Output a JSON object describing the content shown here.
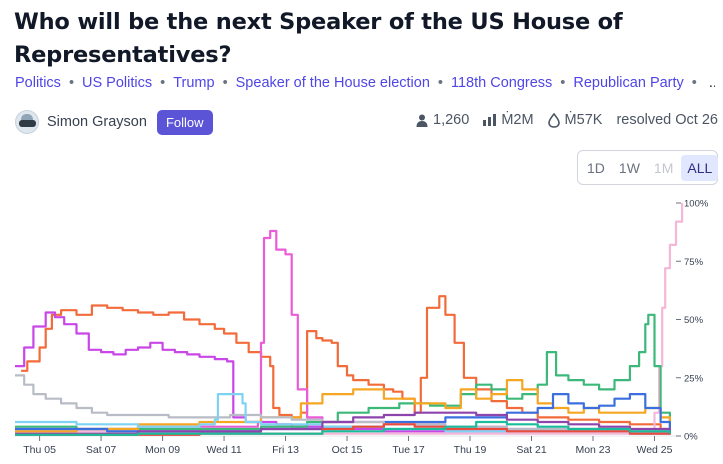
{
  "question": {
    "title": "Who will be the next Speaker of the US House of Representatives?"
  },
  "tags": [
    "Politics",
    "US Politics",
    "Trump",
    "Speaker of the House election",
    "118th Congress",
    "Republican Party"
  ],
  "tags_more": "...",
  "author": {
    "name": "Simon Grayson",
    "follow_label": "Follow"
  },
  "stats": {
    "traders": "1,260",
    "volume": "Ṁ2M",
    "liquidity": "Ṁ57K",
    "resolved": "resolved Oct 26"
  },
  "icons": {
    "traders": "person-icon",
    "volume": "bar-chart-icon",
    "liquidity": "droplet-icon"
  },
  "range_buttons": [
    {
      "label": "1D",
      "state": "normal"
    },
    {
      "label": "1W",
      "state": "normal"
    },
    {
      "label": "1M",
      "state": "disabled"
    },
    {
      "label": "ALL",
      "state": "active"
    }
  ],
  "colors": {
    "accent": "#5b54d6",
    "tag": "#4f46e5"
  },
  "chart_data": {
    "type": "line",
    "x_labels": [
      "Thu 05",
      "Sat 07",
      "Mon 09",
      "Wed 11",
      "Fri 13",
      "Oct 15",
      "Tue 17",
      "Thu 19",
      "Sat 21",
      "Mon 23",
      "Wed 25"
    ],
    "y_tick_labels": [
      "100%",
      "75%",
      "50%",
      "25%",
      "0%"
    ],
    "ylim": [
      0,
      100
    ],
    "xlim": [
      0,
      21.5
    ],
    "y_axis_position": "right",
    "series": [
      {
        "color": "#f26b3a",
        "points": [
          [
            0.2,
            28
          ],
          [
            0.4,
            32
          ],
          [
            0.8,
            38
          ],
          [
            1.0,
            46
          ],
          [
            1.2,
            52
          ],
          [
            1.5,
            54
          ],
          [
            2.0,
            52
          ],
          [
            2.5,
            56
          ],
          [
            3.0,
            55
          ],
          [
            3.5,
            54
          ],
          [
            4.0,
            53
          ],
          [
            4.5,
            52
          ],
          [
            5.0,
            53
          ],
          [
            5.5,
            50
          ],
          [
            6.0,
            48
          ],
          [
            6.5,
            46
          ],
          [
            6.8,
            44
          ],
          [
            7.0,
            44
          ],
          [
            7.2,
            40
          ],
          [
            7.6,
            36
          ],
          [
            8.0,
            34
          ],
          [
            8.3,
            30
          ],
          [
            8.4,
            12
          ],
          [
            8.6,
            9
          ],
          [
            9.0,
            8
          ],
          [
            9.3,
            10
          ],
          [
            9.5,
            45
          ],
          [
            9.8,
            42
          ],
          [
            10.0,
            41
          ],
          [
            10.3,
            40
          ],
          [
            10.5,
            30
          ],
          [
            10.8,
            26
          ],
          [
            11.0,
            24
          ],
          [
            11.5,
            22
          ],
          [
            12.0,
            20
          ],
          [
            12.3,
            19
          ],
          [
            12.6,
            16
          ],
          [
            13.0,
            10
          ],
          [
            13.2,
            25
          ],
          [
            13.4,
            55
          ],
          [
            13.8,
            60
          ],
          [
            14.0,
            52
          ],
          [
            14.3,
            40
          ],
          [
            14.6,
            25
          ],
          [
            15.0,
            20
          ],
          [
            15.5,
            15
          ],
          [
            16.0,
            12
          ],
          [
            16.5,
            10
          ],
          [
            17.0,
            8
          ],
          [
            18.0,
            7
          ],
          [
            19.0,
            6
          ],
          [
            20.0,
            5
          ],
          [
            21.0,
            3
          ],
          [
            21.3,
            2
          ]
        ]
      },
      {
        "color": "#c946e8",
        "points": [
          [
            0.0,
            30
          ],
          [
            0.3,
            38
          ],
          [
            0.6,
            47
          ],
          [
            1.0,
            53
          ],
          [
            1.3,
            51
          ],
          [
            1.6,
            48
          ],
          [
            2.0,
            44
          ],
          [
            2.4,
            37
          ],
          [
            2.8,
            36
          ],
          [
            3.2,
            35
          ],
          [
            3.6,
            37
          ],
          [
            4.0,
            38
          ],
          [
            4.4,
            40
          ],
          [
            4.8,
            37
          ],
          [
            5.2,
            36
          ],
          [
            5.6,
            35
          ],
          [
            6.0,
            34
          ],
          [
            6.5,
            33
          ],
          [
            6.9,
            32
          ],
          [
            7.1,
            8
          ],
          [
            7.5,
            6
          ],
          [
            8.0,
            6
          ],
          [
            8.5,
            5
          ],
          [
            9.0,
            4
          ],
          [
            10.0,
            3
          ],
          [
            11.0,
            3
          ],
          [
            12.0,
            2
          ],
          [
            14.0,
            2
          ],
          [
            16.0,
            2
          ],
          [
            18.0,
            2
          ],
          [
            20.0,
            1
          ],
          [
            21.3,
            1
          ]
        ]
      },
      {
        "color": "#ea5cd8",
        "points": [
          [
            0.0,
            3
          ],
          [
            2.0,
            3
          ],
          [
            4.0,
            4
          ],
          [
            6.0,
            4
          ],
          [
            7.9,
            6
          ],
          [
            8.0,
            40
          ],
          [
            8.1,
            85
          ],
          [
            8.3,
            88
          ],
          [
            8.5,
            80
          ],
          [
            8.8,
            78
          ],
          [
            9.0,
            52
          ],
          [
            9.2,
            20
          ],
          [
            9.5,
            8
          ],
          [
            10.0,
            6
          ],
          [
            12.0,
            5
          ],
          [
            14.0,
            4
          ],
          [
            16.0,
            3
          ],
          [
            18.0,
            3
          ],
          [
            20.0,
            2
          ],
          [
            21.3,
            1
          ]
        ]
      },
      {
        "color": "#f4b7d8",
        "points": [
          [
            0.0,
            2
          ],
          [
            4.0,
            1
          ],
          [
            8.0,
            1
          ],
          [
            12.0,
            1
          ],
          [
            16.0,
            1
          ],
          [
            19.0,
            1
          ],
          [
            20.5,
            2
          ],
          [
            20.8,
            10
          ],
          [
            20.95,
            30
          ],
          [
            21.05,
            55
          ],
          [
            21.15,
            72
          ],
          [
            21.3,
            82
          ],
          [
            21.5,
            92
          ],
          [
            21.7,
            100
          ]
        ]
      },
      {
        "color": "#3cb87a",
        "points": [
          [
            0.0,
            4
          ],
          [
            2.0,
            3
          ],
          [
            4.0,
            3
          ],
          [
            6.0,
            3
          ],
          [
            8.0,
            4
          ],
          [
            9.5,
            6
          ],
          [
            10.5,
            10
          ],
          [
            11.5,
            12
          ],
          [
            12.5,
            14
          ],
          [
            13.5,
            13
          ],
          [
            14.5,
            18
          ],
          [
            15.0,
            22
          ],
          [
            15.5,
            20
          ],
          [
            16.0,
            16
          ],
          [
            16.5,
            18
          ],
          [
            17.0,
            22
          ],
          [
            17.3,
            36
          ],
          [
            17.6,
            26
          ],
          [
            18.0,
            24
          ],
          [
            18.5,
            22
          ],
          [
            19.0,
            20
          ],
          [
            19.5,
            24
          ],
          [
            20.0,
            30
          ],
          [
            20.3,
            36
          ],
          [
            20.5,
            48
          ],
          [
            20.6,
            52
          ],
          [
            20.8,
            30
          ],
          [
            21.0,
            10
          ],
          [
            21.3,
            4
          ]
        ]
      },
      {
        "color": "#f5a623",
        "points": [
          [
            0.0,
            2
          ],
          [
            2.0,
            3
          ],
          [
            4.0,
            5
          ],
          [
            6.0,
            6
          ],
          [
            8.0,
            8
          ],
          [
            9.3,
            14
          ],
          [
            10.0,
            18
          ],
          [
            11.0,
            20
          ],
          [
            12.0,
            16
          ],
          [
            13.0,
            14
          ],
          [
            14.0,
            12
          ],
          [
            14.5,
            20
          ],
          [
            15.0,
            16
          ],
          [
            15.5,
            18
          ],
          [
            16.0,
            24
          ],
          [
            16.5,
            20
          ],
          [
            17.0,
            14
          ],
          [
            17.5,
            12
          ],
          [
            18.0,
            10
          ],
          [
            18.5,
            12
          ],
          [
            19.0,
            10
          ],
          [
            20.0,
            10
          ],
          [
            20.5,
            12
          ],
          [
            21.0,
            8
          ],
          [
            21.3,
            3
          ]
        ]
      },
      {
        "color": "#3b6fe0",
        "points": [
          [
            0.0,
            3
          ],
          [
            3.0,
            2
          ],
          [
            6.0,
            2
          ],
          [
            8.0,
            3
          ],
          [
            10.0,
            4
          ],
          [
            12.0,
            6
          ],
          [
            14.0,
            8
          ],
          [
            16.0,
            10
          ],
          [
            17.0,
            12
          ],
          [
            17.5,
            18
          ],
          [
            18.0,
            14
          ],
          [
            18.5,
            12
          ],
          [
            19.0,
            13
          ],
          [
            19.5,
            16
          ],
          [
            20.0,
            18
          ],
          [
            20.5,
            12
          ],
          [
            21.0,
            6
          ],
          [
            21.3,
            3
          ]
        ]
      },
      {
        "color": "#b8bcc6",
        "points": [
          [
            0.0,
            26
          ],
          [
            0.3,
            22
          ],
          [
            0.6,
            18
          ],
          [
            1.0,
            16
          ],
          [
            1.5,
            14
          ],
          [
            2.0,
            12
          ],
          [
            2.5,
            10
          ],
          [
            3.0,
            9
          ],
          [
            4.0,
            9
          ],
          [
            5.0,
            8
          ],
          [
            6.0,
            8
          ],
          [
            7.0,
            9
          ],
          [
            8.0,
            8
          ],
          [
            9.0,
            7
          ],
          [
            10.0,
            6
          ],
          [
            12.0,
            5
          ],
          [
            14.0,
            4
          ],
          [
            16.0,
            3
          ],
          [
            18.0,
            3
          ],
          [
            20.0,
            2
          ],
          [
            21.3,
            1
          ]
        ]
      },
      {
        "color": "#7ed3f2",
        "points": [
          [
            0.0,
            6
          ],
          [
            2.0,
            5
          ],
          [
            4.0,
            4
          ],
          [
            6.0,
            5
          ],
          [
            6.5,
            7
          ],
          [
            6.6,
            18
          ],
          [
            7.0,
            18
          ],
          [
            7.4,
            14
          ],
          [
            7.5,
            6
          ],
          [
            8.0,
            5
          ],
          [
            10.0,
            4
          ],
          [
            12.0,
            3
          ],
          [
            14.0,
            2
          ],
          [
            16.0,
            2
          ],
          [
            18.0,
            2
          ],
          [
            20.0,
            1
          ],
          [
            21.3,
            1
          ]
        ]
      },
      {
        "color": "#8e44ad",
        "points": [
          [
            0.0,
            1
          ],
          [
            4.0,
            2
          ],
          [
            8.0,
            3
          ],
          [
            10.0,
            6
          ],
          [
            11.0,
            8
          ],
          [
            12.0,
            9
          ],
          [
            13.0,
            10
          ],
          [
            14.0,
            10
          ],
          [
            15.0,
            9
          ],
          [
            16.0,
            7
          ],
          [
            17.0,
            6
          ],
          [
            18.0,
            5
          ],
          [
            19.0,
            4
          ],
          [
            20.0,
            3
          ],
          [
            21.3,
            1
          ]
        ]
      },
      {
        "color": "#e74c3c",
        "points": [
          [
            0.0,
            0.5
          ],
          [
            6.0,
            1
          ],
          [
            9.0,
            1
          ],
          [
            10.0,
            3
          ],
          [
            11.0,
            4
          ],
          [
            12.0,
            5
          ],
          [
            13.0,
            4
          ],
          [
            14.0,
            3
          ],
          [
            16.0,
            2
          ],
          [
            18.0,
            2
          ],
          [
            20.0,
            1
          ],
          [
            21.3,
            0.5
          ]
        ]
      },
      {
        "color": "#1abc9c",
        "points": [
          [
            0.0,
            0.5
          ],
          [
            4.0,
            1
          ],
          [
            8.0,
            1
          ],
          [
            10.0,
            2
          ],
          [
            12.0,
            3
          ],
          [
            14.0,
            4
          ],
          [
            15.0,
            6
          ],
          [
            16.0,
            5
          ],
          [
            17.0,
            4
          ],
          [
            18.0,
            3
          ],
          [
            20.0,
            2
          ],
          [
            21.3,
            1
          ]
        ]
      }
    ]
  }
}
